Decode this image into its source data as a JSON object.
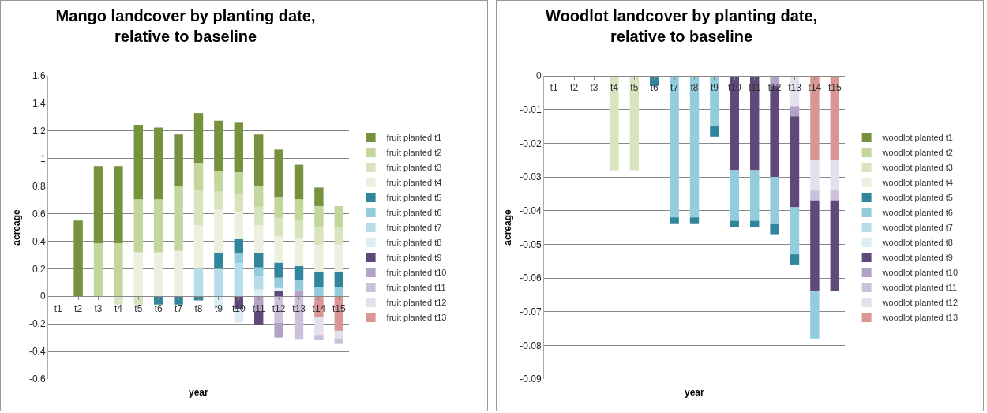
{
  "chart_data": [
    {
      "type": "bar",
      "title": "Mango landcover by planting date,\nrelative to baseline",
      "xlabel": "year",
      "ylabel": "acreage",
      "stacked": true,
      "grid": "y",
      "legend": "right",
      "ylim": [
        -0.6,
        1.6
      ],
      "yticks": [
        -0.6,
        -0.4,
        -0.2,
        0,
        0.2,
        0.4,
        0.6,
        0.8,
        1,
        1.2,
        1.4,
        1.6
      ],
      "categories": [
        "t1",
        "t2",
        "t3",
        "t4",
        "t5",
        "t6",
        "t7",
        "t8",
        "t9",
        "t10",
        "t11",
        "t12",
        "t13",
        "t14",
        "t15"
      ],
      "series": [
        {
          "name": "fruit planted t13",
          "color": "#d99694",
          "values": [
            null,
            null,
            null,
            null,
            null,
            null,
            null,
            null,
            null,
            null,
            null,
            null,
            null,
            -0.15,
            -0.25
          ]
        },
        {
          "name": "fruit planted t12",
          "color": "#e5e0ec",
          "values": [
            null,
            null,
            null,
            null,
            null,
            null,
            null,
            null,
            null,
            null,
            null,
            null,
            null,
            -0.13,
            -0.055
          ]
        },
        {
          "name": "fruit planted t11",
          "color": "#ccc1da",
          "values": [
            null,
            null,
            null,
            null,
            null,
            null,
            null,
            null,
            null,
            null,
            null,
            -0.19,
            -0.31,
            -0.035,
            -0.035
          ]
        },
        {
          "name": "fruit planted t10",
          "color": "#b2a2c7",
          "values": [
            null,
            null,
            null,
            null,
            null,
            null,
            null,
            null,
            null,
            null,
            -0.11,
            -0.11,
            0.045,
            null,
            null
          ]
        },
        {
          "name": "fruit planted t9",
          "color": "#5f497a",
          "values": [
            null,
            null,
            null,
            null,
            null,
            null,
            null,
            null,
            null,
            -0.09,
            -0.1,
            0.04,
            null,
            null,
            null
          ]
        },
        {
          "name": "fruit planted t8",
          "color": "#dbeef4",
          "values": [
            null,
            null,
            null,
            null,
            null,
            null,
            null,
            null,
            -0.09,
            -0.1,
            0.05,
            0.02,
            null,
            null,
            null
          ]
        },
        {
          "name": "fruit planted t7",
          "color": "#b7dee8",
          "values": [
            null,
            null,
            null,
            null,
            null,
            null,
            null,
            0.2,
            0.2,
            0.24,
            0.1,
            null,
            null,
            null,
            null
          ]
        },
        {
          "name": "fruit planted t6",
          "color": "#93cddd",
          "values": [
            null,
            null,
            null,
            null,
            null,
            null,
            null,
            null,
            null,
            0.07,
            0.06,
            0.075,
            0.07,
            0.07,
            0.07
          ]
        },
        {
          "name": "fruit planted t5",
          "color": "#31859c",
          "values": [
            null,
            null,
            null,
            null,
            null,
            -0.06,
            -0.06,
            -0.03,
            0.115,
            0.105,
            0.105,
            0.11,
            0.105,
            0.105,
            0.105
          ]
        },
        {
          "name": "fruit planted t4",
          "color": "#ebf1de",
          "values": [
            null,
            null,
            null,
            null,
            0.32,
            0.32,
            0.33,
            0.315,
            0.315,
            0.2,
            0.2,
            0.19,
            0.2,
            0.2,
            0.2
          ]
        },
        {
          "name": "fruit planted t3",
          "color": "#d7e4bd",
          "values": [
            null,
            null,
            null,
            -0.06,
            -0.06,
            null,
            null,
            0.26,
            0.13,
            0.125,
            0.135,
            0.135,
            0.135,
            0.125,
            0.125
          ]
        },
        {
          "name": "fruit planted t2",
          "color": "#c3d69b",
          "values": [
            null,
            null,
            0.385,
            0.385,
            0.385,
            0.385,
            0.47,
            0.19,
            0.15,
            0.16,
            0.15,
            0.15,
            0.15,
            0.155,
            0.155
          ]
        },
        {
          "name": "fruit planted t1",
          "color": "#76923c",
          "values": [
            null,
            0.55,
            0.56,
            0.56,
            0.54,
            0.52,
            0.375,
            0.365,
            0.365,
            0.36,
            0.375,
            0.345,
            0.25,
            0.135,
            null
          ]
        }
      ]
    },
    {
      "type": "bar",
      "title": "Woodlot landcover by planting date,\nrelative to baseline",
      "xlabel": "year",
      "ylabel": "acreage",
      "stacked": true,
      "grid": "y",
      "legend": "right",
      "ylim": [
        -0.09,
        0
      ],
      "yticks": [
        -0.09,
        -0.08,
        -0.07,
        -0.06,
        -0.05,
        -0.04,
        -0.03,
        -0.02,
        -0.01,
        0
      ],
      "categories": [
        "t1",
        "t2",
        "t3",
        "t4",
        "t5",
        "t6",
        "t7",
        "t8",
        "t9",
        "t10",
        "t11",
        "t12",
        "t13",
        "t14",
        "t15"
      ],
      "series": [
        {
          "name": "woodlot planted t13",
          "color": "#d99694",
          "values": [
            null,
            null,
            null,
            null,
            null,
            null,
            null,
            null,
            null,
            null,
            null,
            null,
            null,
            -0.025,
            -0.025
          ]
        },
        {
          "name": "woodlot planted t12",
          "color": "#e5e0ec",
          "values": [
            null,
            null,
            null,
            null,
            null,
            null,
            null,
            null,
            null,
            null,
            null,
            null,
            -0.009,
            -0.009,
            -0.009
          ]
        },
        {
          "name": "woodlot planted t11",
          "color": "#ccc1da",
          "values": [
            null,
            null,
            null,
            null,
            null,
            null,
            null,
            null,
            null,
            null,
            null,
            null,
            null,
            -0.003,
            -0.003
          ]
        },
        {
          "name": "woodlot planted t10",
          "color": "#b2a2c7",
          "values": [
            null,
            null,
            null,
            null,
            null,
            null,
            null,
            null,
            null,
            null,
            null,
            -0.003,
            -0.003,
            null,
            null
          ]
        },
        {
          "name": "woodlot planted t9",
          "color": "#5f497a",
          "values": [
            null,
            null,
            null,
            null,
            null,
            null,
            null,
            null,
            null,
            -0.028,
            -0.028,
            -0.027,
            -0.027,
            -0.027,
            -0.027
          ]
        },
        {
          "name": "woodlot planted t8",
          "color": "#dbeef4",
          "values": [
            null,
            null,
            null,
            null,
            null,
            null,
            null,
            null,
            null,
            null,
            null,
            null,
            null,
            null,
            null
          ]
        },
        {
          "name": "woodlot planted t7",
          "color": "#b7dee8",
          "values": [
            null,
            null,
            null,
            null,
            null,
            null,
            null,
            null,
            null,
            null,
            null,
            null,
            null,
            null,
            null
          ]
        },
        {
          "name": "woodlot planted t6",
          "color": "#93cddd",
          "values": [
            null,
            null,
            null,
            null,
            null,
            null,
            -0.042,
            -0.042,
            -0.015,
            -0.015,
            -0.015,
            -0.014,
            -0.014,
            -0.014,
            null
          ]
        },
        {
          "name": "woodlot planted t5",
          "color": "#31859c",
          "values": [
            null,
            null,
            null,
            null,
            null,
            -0.003,
            -0.002,
            -0.002,
            -0.003,
            -0.002,
            -0.002,
            -0.003,
            -0.003,
            null,
            null
          ]
        },
        {
          "name": "woodlot planted t4",
          "color": "#ebf1de",
          "values": [
            null,
            null,
            null,
            null,
            null,
            null,
            null,
            null,
            null,
            null,
            null,
            null,
            null,
            null,
            null
          ]
        },
        {
          "name": "woodlot planted t3",
          "color": "#d7e4bd",
          "values": [
            null,
            null,
            null,
            -0.028,
            -0.028,
            null,
            null,
            null,
            null,
            null,
            null,
            null,
            null,
            null,
            null
          ]
        },
        {
          "name": "woodlot planted t2",
          "color": "#c3d69b",
          "values": [
            null,
            null,
            null,
            null,
            null,
            null,
            null,
            null,
            null,
            null,
            null,
            null,
            null,
            null,
            null
          ]
        },
        {
          "name": "woodlot planted t1",
          "color": "#76923c",
          "values": [
            null,
            null,
            null,
            null,
            null,
            null,
            null,
            null,
            null,
            null,
            null,
            null,
            null,
            null,
            null
          ]
        }
      ]
    }
  ]
}
